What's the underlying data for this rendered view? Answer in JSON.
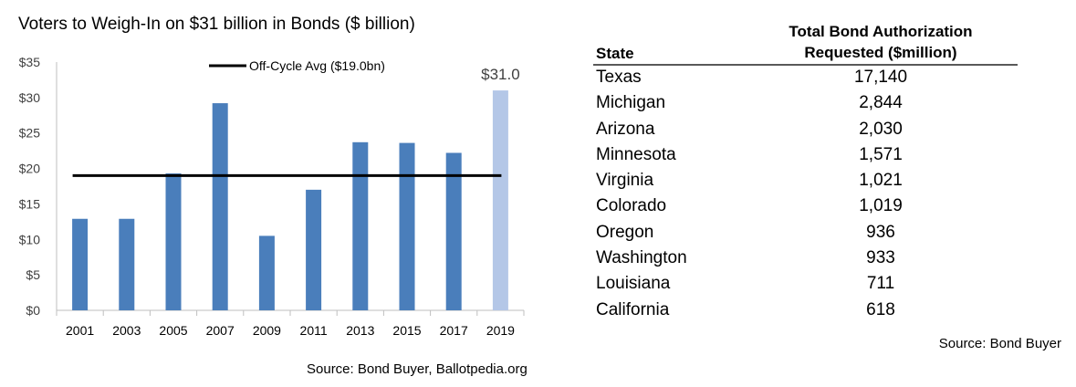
{
  "chart_data": {
    "type": "bar",
    "title": "Voters to Weigh-In on $31 billion in Bonds ($ billion)",
    "categories": [
      "2001",
      "2003",
      "2005",
      "2007",
      "2009",
      "2011",
      "2013",
      "2015",
      "2017",
      "2019"
    ],
    "values": [
      12.9,
      12.9,
      19.3,
      29.2,
      10.5,
      17.0,
      23.7,
      23.6,
      22.2,
      31.0
    ],
    "highlight_index": 9,
    "highlight_label": "$31.0",
    "bar_color": "#4a7ebb",
    "highlight_color": "#b4c7e7",
    "reference_line": {
      "label": "Off-Cycle Avg ($19.0bn)",
      "value": 19.0,
      "color": "#000000"
    },
    "yticks": [
      "$0",
      "$5",
      "$10",
      "$15",
      "$20",
      "$25",
      "$30",
      "$35"
    ],
    "ytick_values": [
      0,
      5,
      10,
      15,
      20,
      25,
      30,
      35
    ],
    "ylim": [
      0,
      35
    ],
    "xlabel": "",
    "ylabel": "",
    "grid": false,
    "legend_position": "top-center",
    "source": "Source: Bond Buyer, Ballotpedia.org"
  },
  "table": {
    "headers": {
      "state": "State",
      "amount_line1": "Total Bond Authorization",
      "amount_line2": "Requested ($million)"
    },
    "rows": [
      {
        "state": "Texas",
        "amount": "17,140"
      },
      {
        "state": "Michigan",
        "amount": "2,844"
      },
      {
        "state": "Arizona",
        "amount": "2,030"
      },
      {
        "state": "Minnesota",
        "amount": "1,571"
      },
      {
        "state": "Virginia",
        "amount": "1,021"
      },
      {
        "state": "Colorado",
        "amount": "1,019"
      },
      {
        "state": "Oregon",
        "amount": "936"
      },
      {
        "state": "Washington",
        "amount": "933"
      },
      {
        "state": "Louisiana",
        "amount": "711"
      },
      {
        "state": "California",
        "amount": "618"
      }
    ],
    "source": "Source: Bond Buyer"
  }
}
